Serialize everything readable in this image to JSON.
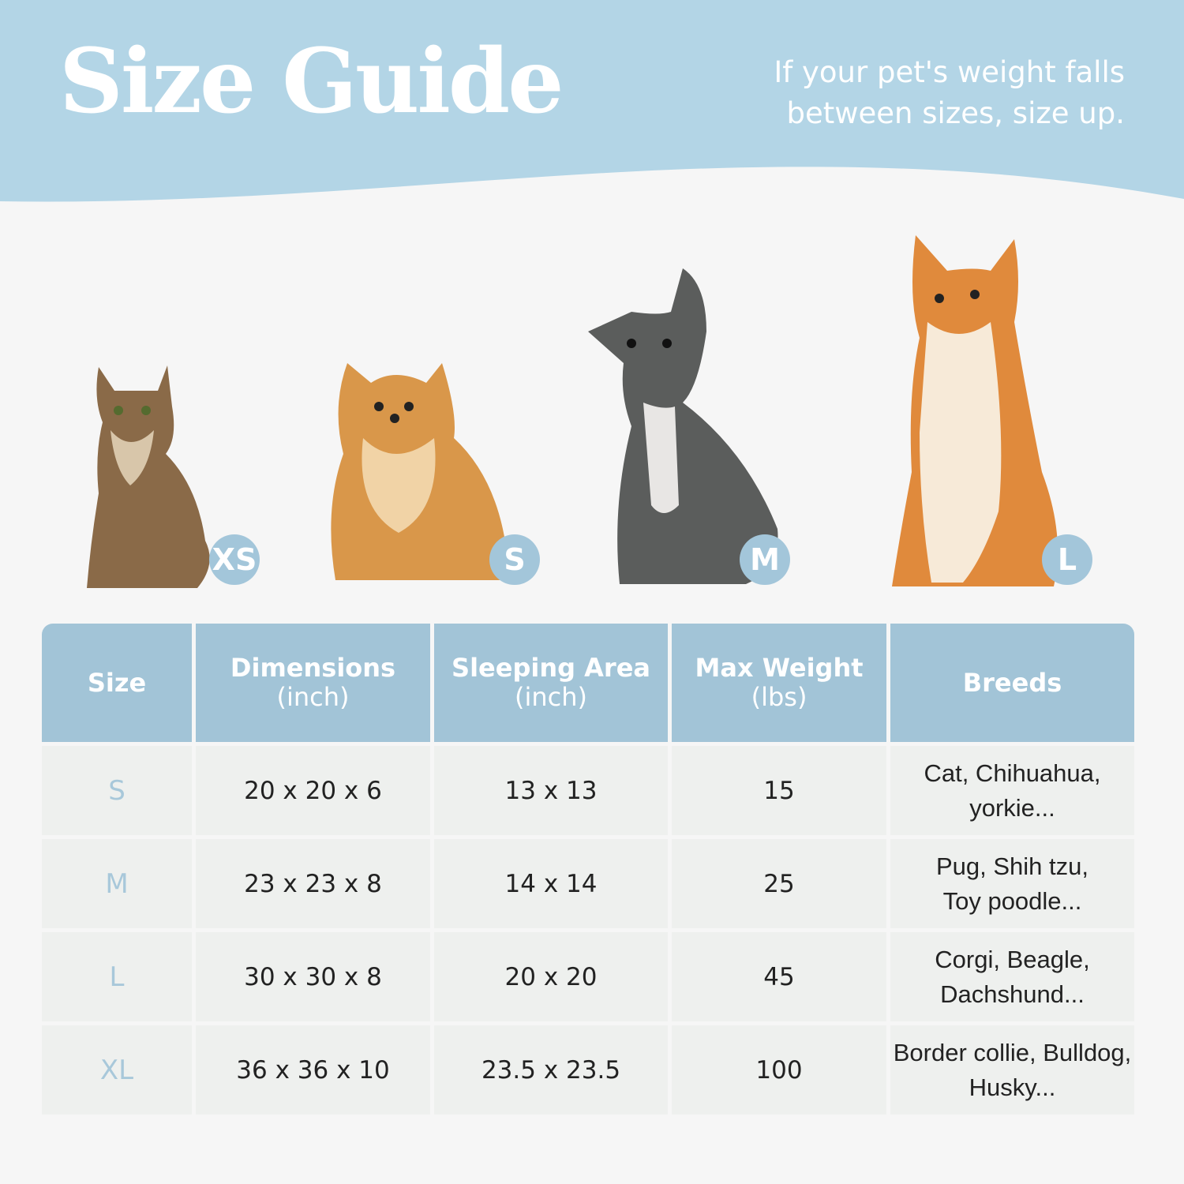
{
  "header": {
    "title": "Size Guide",
    "tip_line1": "If your pet's weight falls",
    "tip_line2": "between sizes, size up."
  },
  "pets": [
    {
      "animal": "cat",
      "badge": "XS"
    },
    {
      "animal": "pomeranian",
      "badge": "S"
    },
    {
      "animal": "french-bulldog",
      "badge": "M"
    },
    {
      "animal": "shiba-inu",
      "badge": "L"
    }
  ],
  "table": {
    "headers": [
      {
        "main": "Size",
        "sub": ""
      },
      {
        "main": "Dimensions",
        "sub": "(inch)"
      },
      {
        "main": "Sleeping Area",
        "sub": "(inch)"
      },
      {
        "main": "Max Weight",
        "sub": "(lbs)"
      },
      {
        "main": "Breeds",
        "sub": ""
      }
    ],
    "rows": [
      {
        "size": "S",
        "dimensions": "20 x 20 x 6",
        "sleeping": "13 x 13",
        "weight": "15",
        "breeds1": "Cat, Chihuahua,",
        "breeds2": "yorkie..."
      },
      {
        "size": "M",
        "dimensions": "23 x 23 x 8",
        "sleeping": "14 x 14",
        "weight": "25",
        "breeds1": "Pug, Shih tzu,",
        "breeds2": "Toy poodle..."
      },
      {
        "size": "L",
        "dimensions": "30 x 30 x 8",
        "sleeping": "20 x 20",
        "weight": "45",
        "breeds1": "Corgi, Beagle,",
        "breeds2": "Dachshund..."
      },
      {
        "size": "XL",
        "dimensions": "36 x 36 x 10",
        "sleeping": "23.5 x 23.5",
        "weight": "100",
        "breeds1": "Border collie, Bulldog,",
        "breeds2": "Husky..."
      }
    ]
  },
  "colors": {
    "banner": "#b3d5e6",
    "header": "#a2c4d7",
    "badge": "#a3c6da",
    "row": "#eef0ee",
    "background": "#f6f6f6"
  }
}
